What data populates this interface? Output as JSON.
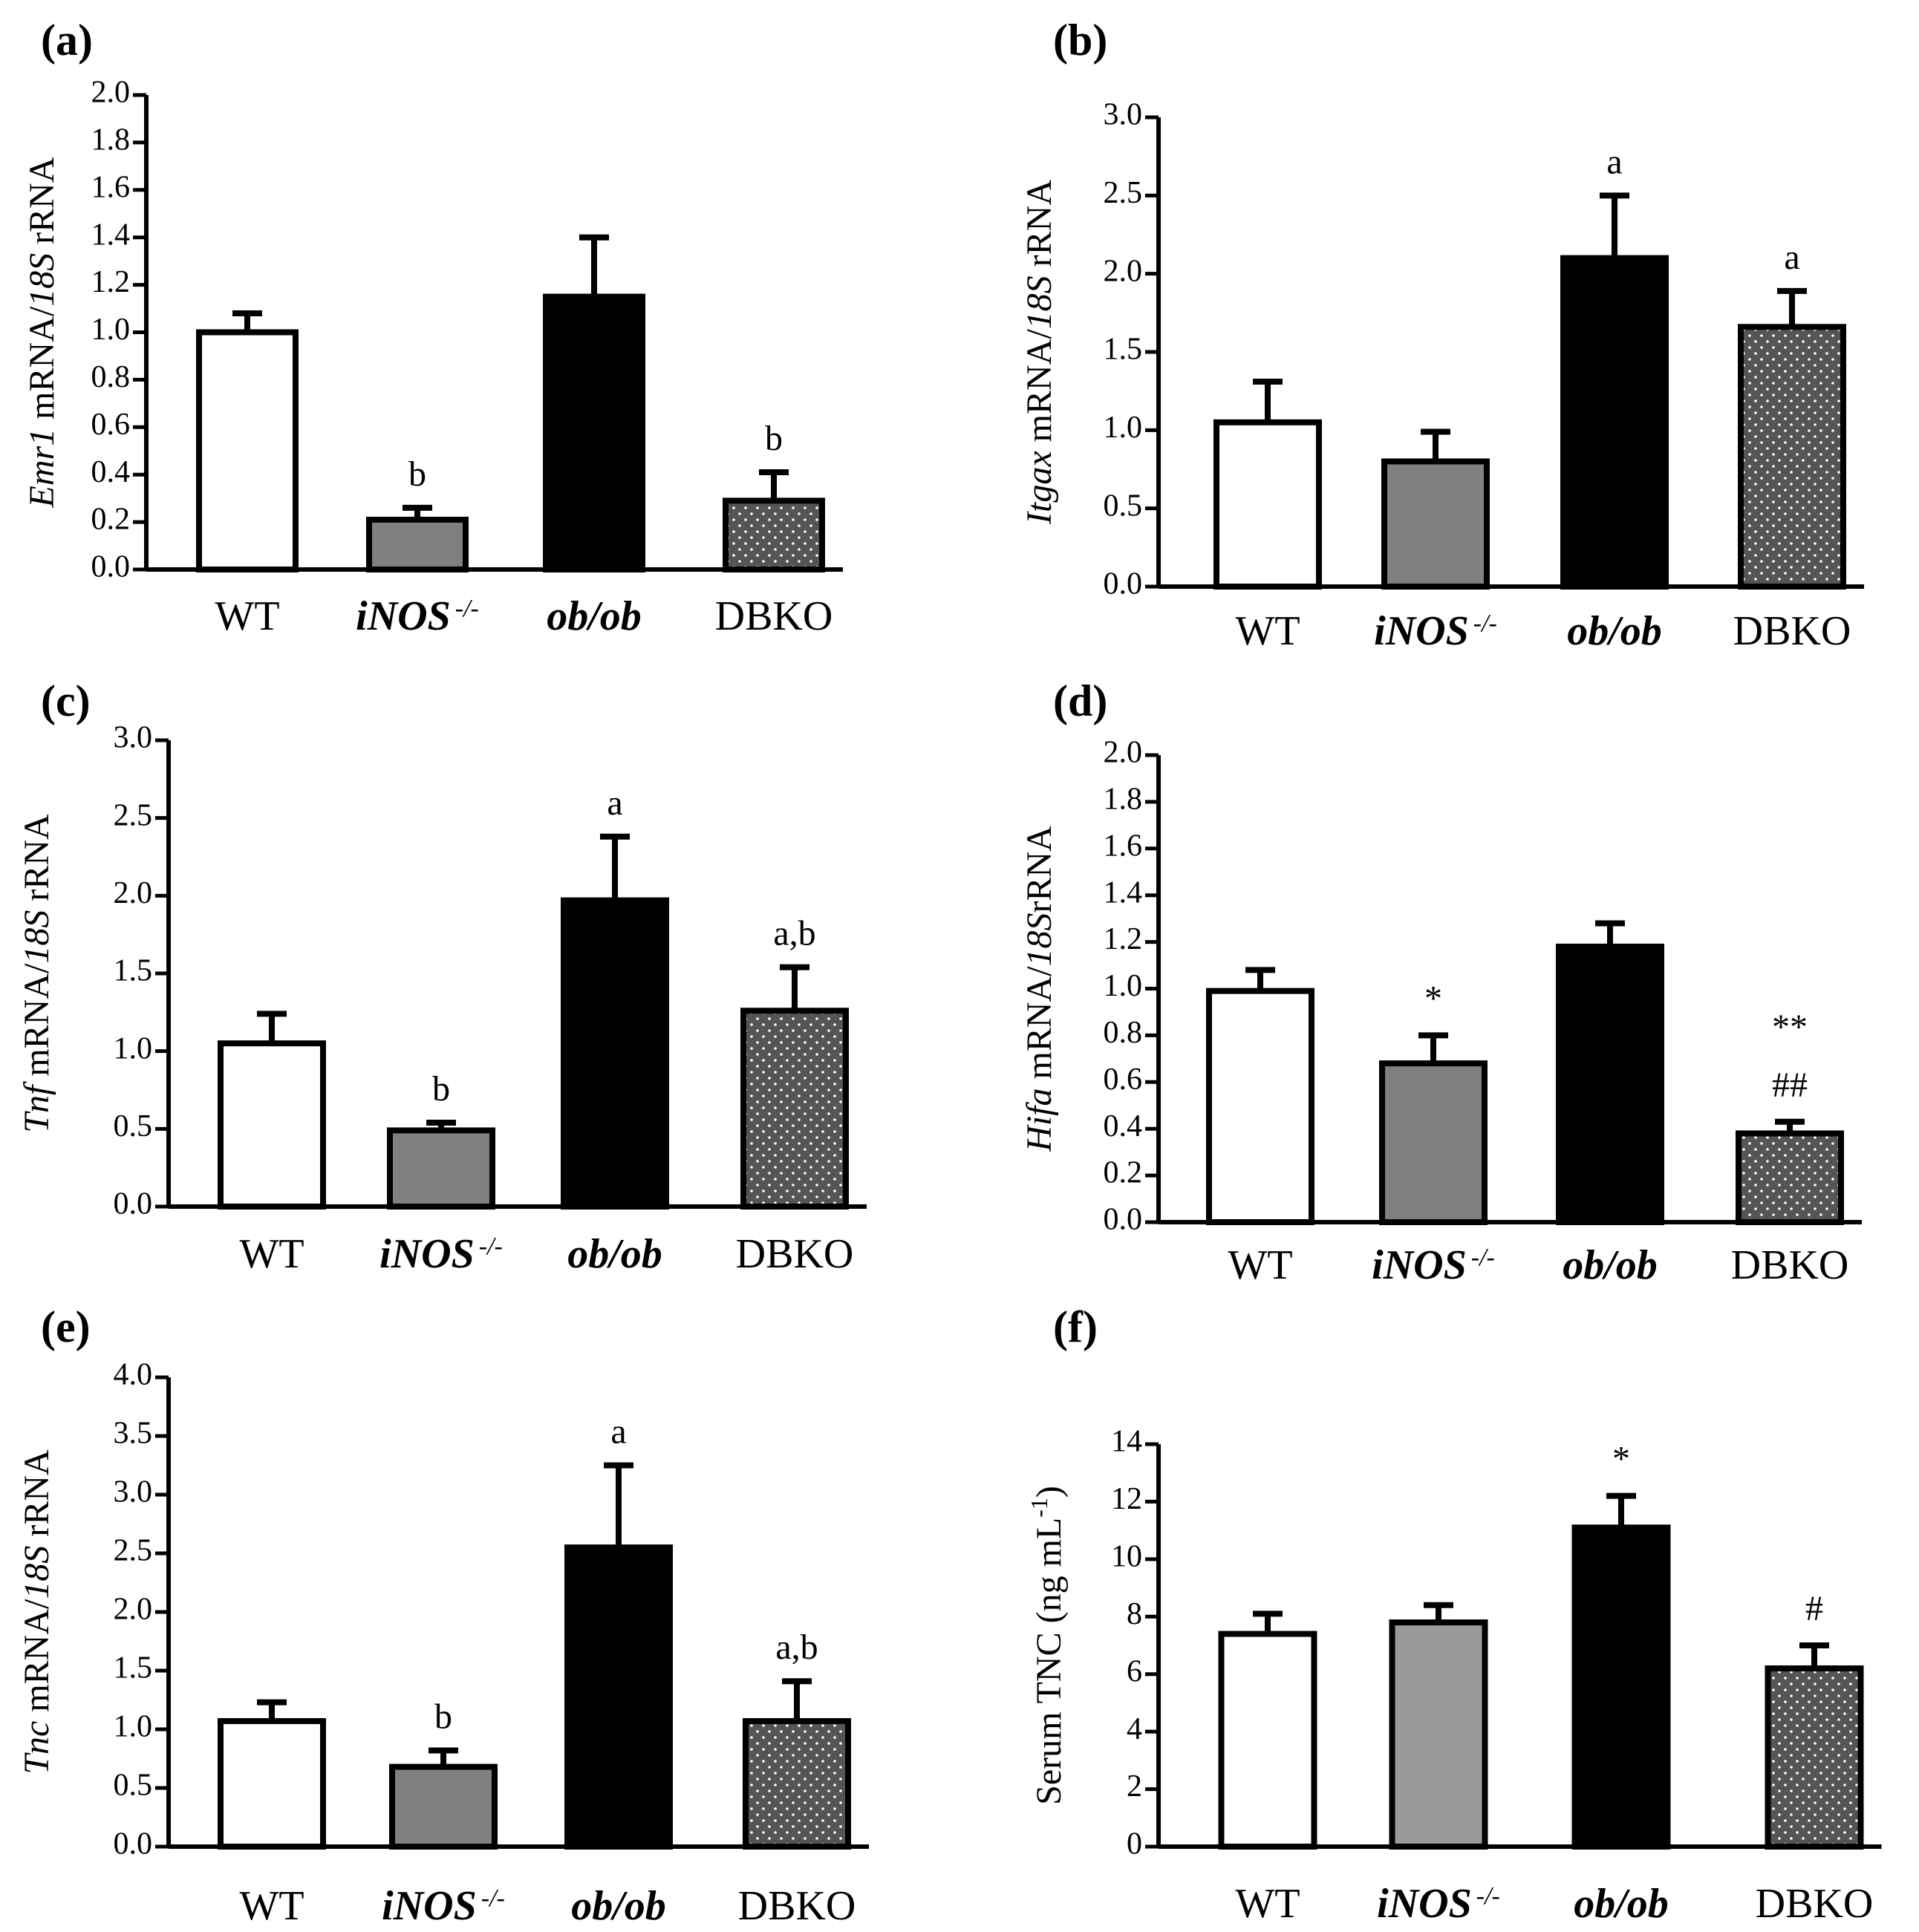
{
  "chart_data": [
    {
      "type": "bar",
      "panel": "(a)",
      "ylabel": {
        "italic": "Emr1",
        "rest": " mRNA/",
        "italic2": "18S",
        "rest2": " rRNA"
      },
      "ylim": [
        0,
        2.0
      ],
      "yticks": [
        "0.0",
        "0.2",
        "0.4",
        "0.6",
        "0.8",
        "1.0",
        "1.2",
        "1.4",
        "1.6",
        "1.8",
        "2.0"
      ],
      "categories": [
        "WT",
        "iNOS",
        "ob/ob",
        "DBKO"
      ],
      "category_sup": [
        "",
        "-/-",
        "",
        ""
      ],
      "values": [
        1.0,
        0.21,
        1.15,
        0.29
      ],
      "errors": [
        0.08,
        0.05,
        0.25,
        0.12
      ],
      "annotations": [
        [],
        [
          "b"
        ],
        [],
        [
          "b"
        ]
      ]
    },
    {
      "type": "bar",
      "panel": "(b)",
      "ylabel": {
        "italic": "Itgax",
        "rest": " mRNA/",
        "italic2": "18S",
        "rest2": " rRNA"
      },
      "ylim": [
        0,
        3.0
      ],
      "yticks": [
        "0.0",
        "0.5",
        "1.0",
        "1.5",
        "2.0",
        "2.5",
        "3.0"
      ],
      "categories": [
        "WT",
        "iNOS",
        "ob/ob",
        "DBKO"
      ],
      "category_sup": [
        "",
        "-/-",
        "",
        ""
      ],
      "values": [
        1.05,
        0.8,
        2.1,
        1.66
      ],
      "errors": [
        0.26,
        0.19,
        0.4,
        0.23
      ],
      "annotations": [
        [],
        [],
        [
          "a"
        ],
        [
          "a"
        ]
      ]
    },
    {
      "type": "bar",
      "panel": "(c)",
      "ylabel": {
        "italic": "Tnf",
        "rest": " mRNA/",
        "italic2": "18S",
        "rest2": " rRNA"
      },
      "ylim": [
        0,
        3.0
      ],
      "yticks": [
        "0.0",
        "0.5",
        "1.0",
        "1.5",
        "2.0",
        "2.5",
        "3.0"
      ],
      "categories": [
        "WT",
        "iNOS",
        "ob/ob",
        "DBKO"
      ],
      "category_sup": [
        "",
        "-/-",
        "",
        ""
      ],
      "values": [
        1.05,
        0.49,
        1.97,
        1.26
      ],
      "errors": [
        0.19,
        0.05,
        0.41,
        0.28
      ],
      "annotations": [
        [],
        [
          "b"
        ],
        [
          "a"
        ],
        [
          "a,b"
        ]
      ]
    },
    {
      "type": "bar",
      "panel": "(d)",
      "ylabel": {
        "italic": "Hifa",
        "rest": " mRNA/",
        "italic2": "18S",
        "rest2": "rRNA"
      },
      "ylim": [
        0,
        2.0
      ],
      "yticks": [
        "0.0",
        "0.2",
        "0.4",
        "0.6",
        "0.8",
        "1.0",
        "1.2",
        "1.4",
        "1.6",
        "1.8",
        "2.0"
      ],
      "categories": [
        "WT",
        "iNOS",
        "ob/ob",
        "DBKO"
      ],
      "category_sup": [
        "",
        "-/-",
        "",
        ""
      ],
      "values": [
        0.99,
        0.68,
        1.18,
        0.38
      ],
      "errors": [
        0.09,
        0.12,
        0.1,
        0.05
      ],
      "annotations": [
        [],
        [
          "*"
        ],
        [],
        [
          "**",
          "##"
        ]
      ]
    },
    {
      "type": "bar",
      "panel": "(e)",
      "ylabel": {
        "italic": "Tnc",
        "rest": " mRNA/",
        "italic2": "18S",
        "rest2": " rRNA"
      },
      "ylim": [
        0,
        4.0
      ],
      "yticks": [
        "0.0",
        "0.5",
        "1.0",
        "1.5",
        "2.0",
        "2.5",
        "3.0",
        "3.5",
        "4.0"
      ],
      "categories": [
        "WT",
        "iNOS",
        "ob/ob",
        "DBKO"
      ],
      "category_sup": [
        "",
        "-/-",
        "",
        ""
      ],
      "values": [
        1.07,
        0.68,
        2.55,
        1.07
      ],
      "errors": [
        0.16,
        0.14,
        0.7,
        0.34
      ],
      "annotations": [
        [],
        [
          "b"
        ],
        [
          "a"
        ],
        [
          "a,b"
        ]
      ]
    },
    {
      "type": "bar",
      "panel": "(f)",
      "ylabel": {
        "italic": "",
        "rest": "Serum TNC (ng mL",
        "sup": "-1",
        "rest2": ")"
      },
      "ylim": [
        0,
        14
      ],
      "yticks": [
        "0",
        "2",
        "4",
        "6",
        "8",
        "10",
        "12",
        "14"
      ],
      "categories": [
        "WT",
        "iNOS",
        "ob/ob",
        "DBKO"
      ],
      "category_sup": [
        "",
        "-/-",
        "",
        ""
      ],
      "values": [
        7.4,
        7.8,
        11.1,
        6.2
      ],
      "errors": [
        0.7,
        0.6,
        1.1,
        0.8
      ],
      "annotations": [
        [],
        [],
        [
          "*"
        ],
        [
          "#"
        ]
      ]
    }
  ]
}
